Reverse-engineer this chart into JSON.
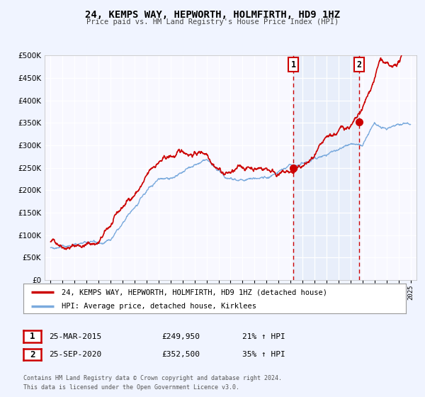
{
  "title": "24, KEMPS WAY, HEPWORTH, HOLMFIRTH, HD9 1HZ",
  "subtitle": "Price paid vs. HM Land Registry's House Price Index (HPI)",
  "legend_entry1": "24, KEMPS WAY, HEPWORTH, HOLMFIRTH, HD9 1HZ (detached house)",
  "legend_entry2": "HPI: Average price, detached house, Kirklees",
  "event1_label": "1",
  "event1_date": "25-MAR-2015",
  "event1_price": "£249,950",
  "event1_pct": "21% ↑ HPI",
  "event2_label": "2",
  "event2_date": "25-SEP-2020",
  "event2_price": "£352,500",
  "event2_pct": "35% ↑ HPI",
  "footer1": "Contains HM Land Registry data © Crown copyright and database right 2024.",
  "footer2": "This data is licensed under the Open Government Licence v3.0.",
  "red_color": "#cc0000",
  "blue_color": "#7aaadd",
  "background_color": "#f0f4ff",
  "plot_bg": "#f8f8ff",
  "ylim": [
    0,
    500000
  ],
  "yticks": [
    0,
    50000,
    100000,
    150000,
    200000,
    250000,
    300000,
    350000,
    400000,
    450000,
    500000
  ],
  "event1_x": 2015.23,
  "event2_x": 2020.73,
  "event1_y_red": 249950,
  "event2_y_red": 352500,
  "xlim_left": 1994.5,
  "xlim_right": 2025.5
}
